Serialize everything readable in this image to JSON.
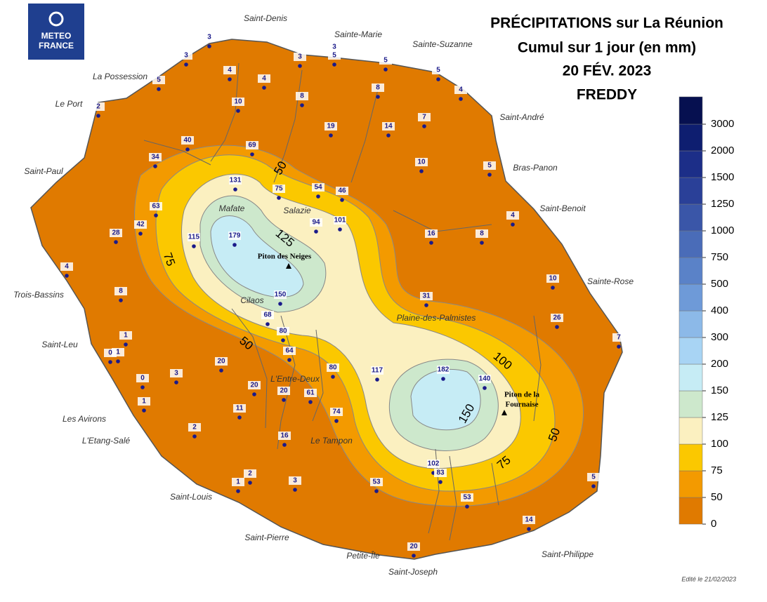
{
  "logo": [
    "METEO",
    "FRANCE"
  ],
  "header": {
    "title": [
      "PRÉCIPITATIONS sur La Réunion",
      "Cumul sur 1 jour (en mm)",
      "20 FÉV. 2023",
      "FREDDY"
    ]
  },
  "legend": {
    "values": [
      0,
      50,
      75,
      100,
      125,
      150,
      200,
      300,
      400,
      500,
      750,
      1000,
      1250,
      1500,
      2000,
      3000
    ],
    "colors": [
      "#e07a00",
      "#f39a00",
      "#fbc800",
      "#fbf0c0",
      "#cde8cc",
      "#c6ecf5",
      "#a8d4f4",
      "#8cb9e8",
      "#6e9ad8",
      "#5a82c8",
      "#4a6cb8",
      "#3a56a8",
      "#2a4098",
      "#1c2e88",
      "#0e1e70",
      "#061050"
    ]
  },
  "places": [
    "Saint-Denis",
    "Sainte-Marie",
    "Sainte-Suzanne",
    "La Possession",
    "Le Port",
    "Saint-André",
    "Saint-Paul",
    "Bras-Panon",
    "Saint-Benoit",
    "Mafate",
    "Salazie",
    "Trois-Bassins",
    "Sainte-Rose",
    "Cilaos",
    "Plaine-des-Palmistes",
    "Saint-Leu",
    "L'Entre-Deux",
    "Les Avirons",
    "L'Etang-Salé",
    "Le Tampon",
    "Saint-Louis",
    "Saint-Pierre",
    "Petite-Île",
    "Saint-Philippe",
    "Saint-Joseph"
  ],
  "summits": [
    "Piton des Neiges",
    "Piton de la",
    "Fournaise"
  ],
  "contour_labels": [
    50,
    125,
    75,
    50,
    100,
    150,
    50,
    75
  ],
  "stations": [
    3,
    3,
    5,
    2,
    4,
    4,
    10,
    3,
    3,
    5,
    5,
    5,
    4,
    8,
    8,
    19,
    14,
    7,
    40,
    69,
    34,
    10,
    5,
    131,
    75,
    54,
    46,
    63,
    42,
    28,
    115,
    179,
    94,
    101,
    16,
    8,
    4,
    4,
    8,
    10,
    150,
    31,
    68,
    80,
    26,
    7,
    1,
    1,
    0,
    20,
    64,
    80,
    117,
    182,
    140,
    0,
    3,
    20,
    20,
    61,
    1,
    11,
    74,
    2,
    16,
    102,
    83,
    5,
    2,
    1,
    3,
    53,
    53,
    14,
    20
  ],
  "footer": "Edité le 21/02/2023"
}
